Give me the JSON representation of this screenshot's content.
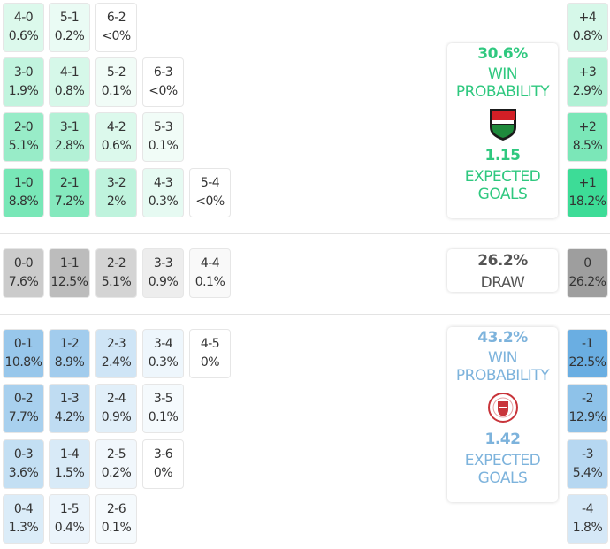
{
  "colors": {
    "home": "#3ddc97",
    "away": "#6aaee2",
    "draw": "#9e9e9e",
    "home_text": "#2fc87f",
    "away_text": "#7db3dc"
  },
  "home_grid": [
    [
      {
        "s": "4-0",
        "p": "0.6%"
      },
      {
        "s": "5-1",
        "p": "0.2%"
      },
      {
        "s": "6-2",
        "p": "<0%"
      }
    ],
    [
      {
        "s": "3-0",
        "p": "1.9%"
      },
      {
        "s": "4-1",
        "p": "0.8%"
      },
      {
        "s": "5-2",
        "p": "0.1%"
      },
      {
        "s": "6-3",
        "p": "<0%"
      }
    ],
    [
      {
        "s": "2-0",
        "p": "5.1%"
      },
      {
        "s": "3-1",
        "p": "2.8%"
      },
      {
        "s": "4-2",
        "p": "0.6%"
      },
      {
        "s": "5-3",
        "p": "0.1%"
      }
    ],
    [
      {
        "s": "1-0",
        "p": "8.8%"
      },
      {
        "s": "2-1",
        "p": "7.2%"
      },
      {
        "s": "3-2",
        "p": "2%"
      },
      {
        "s": "4-3",
        "p": "0.3%"
      },
      {
        "s": "5-4",
        "p": "<0%"
      }
    ]
  ],
  "draw_grid": [
    [
      {
        "s": "0-0",
        "p": "7.6%"
      },
      {
        "s": "1-1",
        "p": "12.5%"
      },
      {
        "s": "2-2",
        "p": "5.1%"
      },
      {
        "s": "3-3",
        "p": "0.9%"
      },
      {
        "s": "4-4",
        "p": "0.1%"
      }
    ]
  ],
  "away_grid": [
    [
      {
        "s": "0-1",
        "p": "10.8%"
      },
      {
        "s": "1-2",
        "p": "8.9%"
      },
      {
        "s": "2-3",
        "p": "2.4%"
      },
      {
        "s": "3-4",
        "p": "0.3%"
      },
      {
        "s": "4-5",
        "p": "0%"
      }
    ],
    [
      {
        "s": "0-2",
        "p": "7.7%"
      },
      {
        "s": "1-3",
        "p": "4.2%"
      },
      {
        "s": "2-4",
        "p": "0.9%"
      },
      {
        "s": "3-5",
        "p": "0.1%"
      }
    ],
    [
      {
        "s": "0-3",
        "p": "3.6%"
      },
      {
        "s": "1-4",
        "p": "1.5%"
      },
      {
        "s": "2-5",
        "p": "0.2%"
      },
      {
        "s": "3-6",
        "p": "0%"
      }
    ],
    [
      {
        "s": "0-4",
        "p": "1.3%"
      },
      {
        "s": "1-5",
        "p": "0.4%"
      },
      {
        "s": "2-6",
        "p": "0.1%"
      }
    ]
  ],
  "margins_home": [
    {
      "s": "+4",
      "p": "0.8%"
    },
    {
      "s": "+3",
      "p": "2.9%"
    },
    {
      "s": "+2",
      "p": "8.5%"
    },
    {
      "s": "+1",
      "p": "18.2%"
    }
  ],
  "margin_draw": [
    {
      "s": "0",
      "p": "26.2%"
    }
  ],
  "margins_away": [
    {
      "s": "-1",
      "p": "22.5%"
    },
    {
      "s": "-2",
      "p": "12.9%"
    },
    {
      "s": "-3",
      "p": "5.4%"
    },
    {
      "s": "-4",
      "p": "1.8%"
    }
  ],
  "home_card": {
    "win_pct": "30.6%",
    "win_label_1": "WIN",
    "win_label_2": "PROBABILITY",
    "xg": "1.15",
    "xg_label_1": "EXPECTED",
    "xg_label_2": "GOALS",
    "logo_text": "CORK CITY 1984"
  },
  "draw_card": {
    "pct": "26.2%",
    "label": "DRAW"
  },
  "away_card": {
    "win_pct": "43.2%",
    "win_label_1": "WIN",
    "win_label_2": "PROBABILITY",
    "xg": "1.42",
    "xg_label_1": "EXPECTED",
    "xg_label_2": "GOALS",
    "logo_text": "SLIGO ROVERS FOOTBALL CLUB"
  }
}
